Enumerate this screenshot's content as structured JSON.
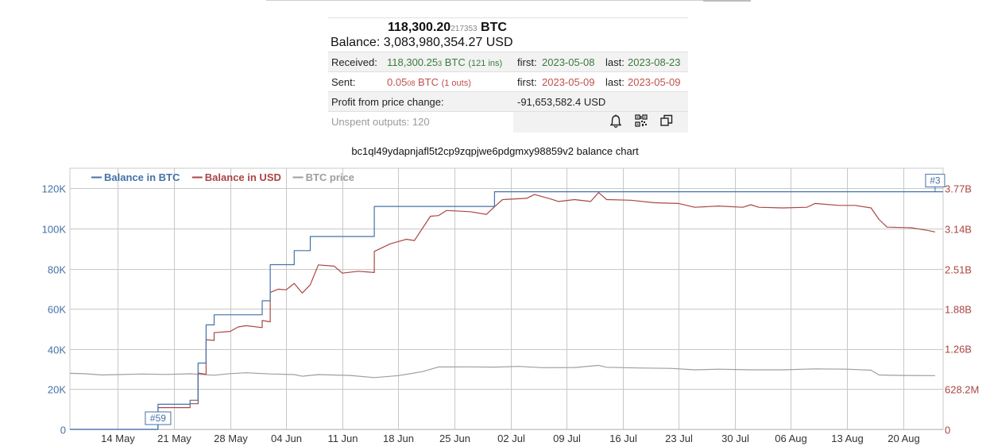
{
  "summary": {
    "btc_main": "118,300.20",
    "btc_frac": "217353",
    "btc_unit": "BTC",
    "balance_label": "Balance:",
    "balance_usd": "3,083,980,354.27 USD",
    "received": {
      "label": "Received:",
      "amount_main": "118,300.25",
      "amount_frac": "3",
      "amount_unit": "BTC",
      "count": "(121 ins)",
      "first_label": "first:",
      "first_date": "2023-05-08",
      "last_label": "last:",
      "last_date": "2023-08-23"
    },
    "sent": {
      "label": "Sent:",
      "amount_main": "0.05",
      "amount_frac": "08",
      "amount_unit": "BTC",
      "count": "(1 outs)",
      "first_label": "first:",
      "first_date": "2023-05-09",
      "last_label": "last:",
      "last_date": "2023-05-09"
    },
    "profit_label": "Profit from price change:",
    "profit_value": "-91,653,582.4 USD",
    "unspent_label": "Unspent outputs: 120",
    "icons": [
      "bell-icon",
      "qr-code-icon",
      "copy-icon"
    ]
  },
  "chart_title": "bc1ql49ydapnjafl5t2cp9zqpjwe6pdgmxy98859v2 balance chart",
  "chart_data": {
    "type": "line",
    "grid": true,
    "legend_placement": "top-left",
    "legend": [
      {
        "name": "Balance in BTC",
        "color": "#4572a7"
      },
      {
        "name": "Balance in USD",
        "color": "#aa4643"
      },
      {
        "name": "BTC price",
        "color": "#9e9e9e"
      }
    ],
    "x_range": [
      "2023-05-08",
      "2023-08-25"
    ],
    "x_ticks": [
      {
        "date": "2023-05-14",
        "label": "14 May"
      },
      {
        "date": "2023-05-21",
        "label": "21 May"
      },
      {
        "date": "2023-05-28",
        "label": "28 May"
      },
      {
        "date": "2023-06-04",
        "label": "04 Jun"
      },
      {
        "date": "2023-06-11",
        "label": "11 Jun"
      },
      {
        "date": "2023-06-18",
        "label": "18 Jun"
      },
      {
        "date": "2023-06-25",
        "label": "25 Jun"
      },
      {
        "date": "2023-07-02",
        "label": "02 Jul"
      },
      {
        "date": "2023-07-09",
        "label": "09 Jul"
      },
      {
        "date": "2023-07-16",
        "label": "16 Jul"
      },
      {
        "date": "2023-07-23",
        "label": "23 Jul"
      },
      {
        "date": "2023-07-30",
        "label": "30 Jul"
      },
      {
        "date": "2023-08-06",
        "label": "06 Aug"
      },
      {
        "date": "2023-08-13",
        "label": "13 Aug"
      },
      {
        "date": "2023-08-20",
        "label": "20 Aug"
      }
    ],
    "y_left": {
      "range": [
        0,
        130000
      ],
      "color": "#4572a7",
      "ticks": [
        {
          "v": 0,
          "label": "0"
        },
        {
          "v": 20000,
          "label": "20K"
        },
        {
          "v": 40000,
          "label": "40K"
        },
        {
          "v": 60000,
          "label": "60K"
        },
        {
          "v": 80000,
          "label": "80K"
        },
        {
          "v": 100000,
          "label": "100K"
        },
        {
          "v": 120000,
          "label": "120K"
        }
      ]
    },
    "y_right": {
      "range": [
        0,
        4080000000
      ],
      "color": "#aa4643",
      "ticks": [
        {
          "v": 0,
          "label": "0"
        },
        {
          "v": 628200000,
          "label": "628.2M"
        },
        {
          "v": 1260000000,
          "label": "1.26B"
        },
        {
          "v": 1880000000,
          "label": "1.88B"
        },
        {
          "v": 2510000000,
          "label": "2.51B"
        },
        {
          "v": 3140000000,
          "label": "3.14B"
        },
        {
          "v": 3770000000,
          "label": "3.77B"
        }
      ]
    },
    "series": [
      {
        "name": "Balance in BTC",
        "axis": "left",
        "color": "#4572a7",
        "step": true,
        "points": [
          [
            "2023-05-08",
            0
          ],
          [
            "2023-05-19",
            0
          ],
          [
            "2023-05-19",
            12500
          ],
          [
            "2023-05-23",
            12500
          ],
          [
            "2023-05-23",
            14500
          ],
          [
            "2023-05-24",
            14500
          ],
          [
            "2023-05-24",
            33000
          ],
          [
            "2023-05-25",
            33000
          ],
          [
            "2023-05-25",
            52000
          ],
          [
            "2023-05-26",
            52000
          ],
          [
            "2023-05-26",
            57000
          ],
          [
            "2023-06-01",
            57000
          ],
          [
            "2023-06-01",
            64000
          ],
          [
            "2023-06-02",
            64000
          ],
          [
            "2023-06-02",
            82000
          ],
          [
            "2023-06-05",
            82000
          ],
          [
            "2023-06-05",
            89000
          ],
          [
            "2023-06-07",
            89000
          ],
          [
            "2023-06-07",
            96000
          ],
          [
            "2023-06-15",
            96000
          ],
          [
            "2023-06-15",
            111000
          ],
          [
            "2023-06-30",
            111000
          ],
          [
            "2023-06-30",
            118300
          ],
          [
            "2023-08-25",
            118300
          ]
        ]
      },
      {
        "name": "Balance in USD",
        "axis": "right",
        "color": "#aa4643",
        "step": false,
        "points": [
          [
            "2023-05-19",
            0
          ],
          [
            "2023-05-19",
            340000000
          ],
          [
            "2023-05-23",
            340000000
          ],
          [
            "2023-05-23",
            400000000
          ],
          [
            "2023-05-24",
            400000000
          ],
          [
            "2023-05-24",
            880000000
          ],
          [
            "2023-05-25",
            860000000
          ],
          [
            "2023-05-25",
            1400000000
          ],
          [
            "2023-05-26",
            1390000000
          ],
          [
            "2023-05-26",
            1510000000
          ],
          [
            "2023-05-28",
            1530000000
          ],
          [
            "2023-05-29",
            1600000000
          ],
          [
            "2023-05-30",
            1620000000
          ],
          [
            "2023-06-01",
            1590000000
          ],
          [
            "2023-06-01",
            1700000000
          ],
          [
            "2023-06-02",
            1680000000
          ],
          [
            "2023-06-02",
            2140000000
          ],
          [
            "2023-06-03",
            2190000000
          ],
          [
            "2023-06-04",
            2180000000
          ],
          [
            "2023-06-05",
            2280000000
          ],
          [
            "2023-06-06",
            2130000000
          ],
          [
            "2023-06-07",
            2260000000
          ],
          [
            "2023-06-08",
            2570000000
          ],
          [
            "2023-06-10",
            2550000000
          ],
          [
            "2023-06-11",
            2440000000
          ],
          [
            "2023-06-13",
            2470000000
          ],
          [
            "2023-06-15",
            2450000000
          ],
          [
            "2023-06-15",
            2780000000
          ],
          [
            "2023-06-17",
            2900000000
          ],
          [
            "2023-06-19",
            2970000000
          ],
          [
            "2023-06-20",
            2950000000
          ],
          [
            "2023-06-22",
            3330000000
          ],
          [
            "2023-06-23",
            3340000000
          ],
          [
            "2023-06-24",
            3420000000
          ],
          [
            "2023-06-27",
            3400000000
          ],
          [
            "2023-06-29",
            3360000000
          ],
          [
            "2023-06-30",
            3480000000
          ],
          [
            "2023-07-01",
            3590000000
          ],
          [
            "2023-07-04",
            3610000000
          ],
          [
            "2023-07-05",
            3670000000
          ],
          [
            "2023-07-07",
            3600000000
          ],
          [
            "2023-07-08",
            3560000000
          ],
          [
            "2023-07-10",
            3590000000
          ],
          [
            "2023-07-12",
            3560000000
          ],
          [
            "2023-07-13",
            3700000000
          ],
          [
            "2023-07-14",
            3590000000
          ],
          [
            "2023-07-17",
            3580000000
          ],
          [
            "2023-07-20",
            3540000000
          ],
          [
            "2023-07-23",
            3530000000
          ],
          [
            "2023-07-25",
            3470000000
          ],
          [
            "2023-07-28",
            3490000000
          ],
          [
            "2023-07-31",
            3470000000
          ],
          [
            "2023-08-01",
            3510000000
          ],
          [
            "2023-08-02",
            3470000000
          ],
          [
            "2023-08-05",
            3460000000
          ],
          [
            "2023-08-08",
            3470000000
          ],
          [
            "2023-08-09",
            3530000000
          ],
          [
            "2023-08-12",
            3500000000
          ],
          [
            "2023-08-14",
            3500000000
          ],
          [
            "2023-08-16",
            3460000000
          ],
          [
            "2023-08-17",
            3280000000
          ],
          [
            "2023-08-18",
            3160000000
          ],
          [
            "2023-08-21",
            3150000000
          ],
          [
            "2023-08-23",
            3110000000
          ],
          [
            "2023-08-24",
            3084000000
          ]
        ]
      },
      {
        "name": "BTC price",
        "axis": "right",
        "color": "#9e9e9e",
        "step": false,
        "points": [
          [
            "2023-05-08",
            876000000
          ],
          [
            "2023-05-10",
            868000000
          ],
          [
            "2023-05-12",
            850000000
          ],
          [
            "2023-05-14",
            856000000
          ],
          [
            "2023-05-17",
            864000000
          ],
          [
            "2023-05-20",
            858000000
          ],
          [
            "2023-05-23",
            868000000
          ],
          [
            "2023-05-26",
            846000000
          ],
          [
            "2023-05-28",
            870000000
          ],
          [
            "2023-05-30",
            884000000
          ],
          [
            "2023-06-02",
            866000000
          ],
          [
            "2023-06-05",
            856000000
          ],
          [
            "2023-06-06",
            830000000
          ],
          [
            "2023-06-08",
            856000000
          ],
          [
            "2023-06-12",
            842000000
          ],
          [
            "2023-06-15",
            808000000
          ],
          [
            "2023-06-18",
            840000000
          ],
          [
            "2023-06-21",
            902000000
          ],
          [
            "2023-06-23",
            975000000
          ],
          [
            "2023-06-27",
            976000000
          ],
          [
            "2023-06-30",
            972000000
          ],
          [
            "2023-07-03",
            984000000
          ],
          [
            "2023-07-06",
            963000000
          ],
          [
            "2023-07-10",
            966000000
          ],
          [
            "2023-07-13",
            1000000000
          ],
          [
            "2023-07-14",
            970000000
          ],
          [
            "2023-07-18",
            958000000
          ],
          [
            "2023-07-22",
            952000000
          ],
          [
            "2023-07-25",
            930000000
          ],
          [
            "2023-07-28",
            940000000
          ],
          [
            "2023-08-01",
            930000000
          ],
          [
            "2023-08-05",
            930000000
          ],
          [
            "2023-08-09",
            945000000
          ],
          [
            "2023-08-13",
            940000000
          ],
          [
            "2023-08-16",
            924000000
          ],
          [
            "2023-08-17",
            850000000
          ],
          [
            "2023-08-20",
            842000000
          ],
          [
            "2023-08-24",
            840000000
          ]
        ]
      }
    ],
    "flags": [
      {
        "label": "#59",
        "date": "2023-05-19",
        "value": 0,
        "color": "#4572a7"
      },
      {
        "label": "#3",
        "date": "2023-08-24",
        "value": 118300,
        "color": "#4572a7"
      }
    ]
  }
}
